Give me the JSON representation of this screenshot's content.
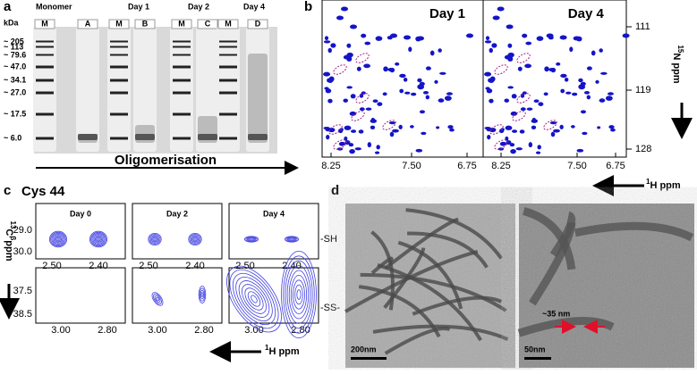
{
  "panel_a": {
    "label": "a",
    "kda": "kDa",
    "markers": [
      "~ 205",
      "~ 113",
      "~ 79.6",
      "~ 47.0",
      "~ 34.1",
      "~ 27.0",
      "~ 17.5",
      "~ 6.0"
    ],
    "groups": [
      "Monomer",
      "Day 1",
      "Day 2",
      "Day 4"
    ],
    "lanes": [
      "M",
      "A",
      "M",
      "B",
      "M",
      "C",
      "M",
      "D"
    ],
    "arrow_label": "Oligomerisation"
  },
  "panel_b": {
    "label": "b",
    "spectra": [
      "Day 1",
      "Day 4"
    ],
    "x_ticks": [
      "8.25",
      "7.50",
      "6.75"
    ],
    "y_ticks": [
      "111",
      "119",
      "128"
    ],
    "y_label": {
      "sup": "15",
      "text": "N ppm"
    },
    "x_label": {
      "sup": "1",
      "text": "H ppm"
    }
  },
  "panel_c": {
    "label": "c",
    "title": "Cys 44",
    "days": [
      "Day 0",
      "Day 2",
      "Day 4"
    ],
    "top_x_ticks": [
      "2.50",
      "2.40"
    ],
    "bottom_x_ticks": [
      "3.00",
      "2.80"
    ],
    "top_y_ticks": [
      "29.0",
      "30.0"
    ],
    "bottom_y_ticks": [
      "37.5",
      "38.5"
    ],
    "row_labels": [
      "-SH",
      "-SS-"
    ],
    "y_label": {
      "sup": "13",
      "text": "C",
      "sup2": "β",
      "rest": "ppm"
    },
    "x_label": {
      "sup": "1",
      "text": "H ppm"
    }
  },
  "panel_d": {
    "label": "d",
    "scale_bars": [
      "200nm",
      "50nm"
    ],
    "width_label": "~35 nm"
  }
}
